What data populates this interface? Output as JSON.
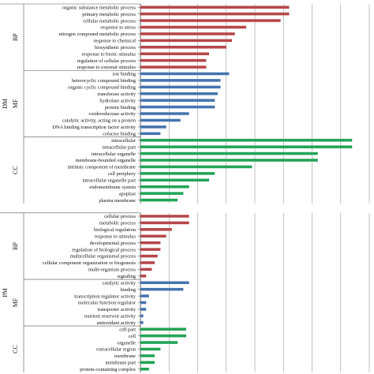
{
  "colors": {
    "BP": "#b5474a",
    "MF": "#4674ae",
    "CC": "#22a455",
    "grid": "#9a9a9a",
    "axis": "#555555"
  },
  "chart_data": {
    "type": "bar",
    "orientation": "horizontal",
    "title": "",
    "xlabel": "",
    "ylabel": "",
    "xlim": [
      0,
      8
    ],
    "grid": true,
    "tick_step": 1,
    "legend": "none",
    "outer_groups": [
      {
        "name": "DM",
        "subgroups": [
          {
            "name": "BP",
            "color_key": "BP",
            "categories": [
              "organic substance metabolic process",
              "primary metabolic process",
              "cellular metabolic process",
              "response to stress",
              "nitrogen compound metabolic process",
              "response to chemical",
              "biosynthetic process",
              "response to biotic stimulus",
              "regulation of cellular process",
              "response to external stimulus"
            ],
            "values": [
              5.2,
              5.2,
              4.9,
              3.7,
              3.3,
              3.2,
              3.0,
              2.4,
              2.3,
              2.3
            ]
          },
          {
            "name": "MF",
            "color_key": "MF",
            "categories": [
              "ion binding",
              "heterocyclic compound binding",
              "organic cyclic compound binding",
              "transferase activity",
              "hydrolase activity",
              "protein binding",
              "oxidoreductase activity",
              "catalytic activity, acting on a protein",
              "DNA binding transcription factor activity",
              "cofactor binding"
            ],
            "values": [
              3.1,
              2.8,
              2.8,
              2.7,
              2.6,
              2.6,
              1.7,
              1.4,
              0.9,
              0.7
            ]
          },
          {
            "name": "CC",
            "color_key": "CC",
            "categories": [
              "intracellular",
              "intracellular part",
              "intracellular organelle",
              "membrane-bounded organelle",
              "intrinsic component of membrane",
              "cell periphery",
              "intracellular organelle part",
              "endomembrane system",
              "apoplast",
              "plasma membrane"
            ],
            "values": [
              7.4,
              7.4,
              6.2,
              6.2,
              3.9,
              2.6,
              2.4,
              1.7,
              1.5,
              1.3
            ]
          }
        ]
      },
      {
        "name": "PM",
        "subgroups": [
          {
            "name": "BP",
            "color_key": "BP",
            "categories": [
              "cellular process",
              "metabolic process",
              "biological regulation",
              "response to stimulus",
              "developmental process",
              "regulation of biological process",
              "multicellular organismal process",
              "cellular component organization or biogenesis",
              "multi-organism process",
              "signaling"
            ],
            "values": [
              1.7,
              1.7,
              1.1,
              0.9,
              0.7,
              0.7,
              0.6,
              0.5,
              0.4,
              0.2
            ]
          },
          {
            "name": "MF",
            "color_key": "MF",
            "categories": [
              "catalytic activity",
              "binding",
              "transcription regulator activity",
              "molecular function regulator",
              "transporter activity",
              "nutrient reservoir activity",
              "antioxidant activity"
            ],
            "values": [
              1.7,
              1.5,
              0.3,
              0.2,
              0.2,
              0.1,
              0.1
            ]
          },
          {
            "name": "CC",
            "color_key": "CC",
            "categories": [
              "cell part",
              "cell",
              "organelle",
              "extracellular region",
              "membrane",
              "membrane part",
              "protein-containing complex"
            ],
            "values": [
              1.6,
              1.6,
              1.3,
              0.7,
              0.5,
              0.5,
              0.3
            ]
          }
        ]
      }
    ]
  }
}
